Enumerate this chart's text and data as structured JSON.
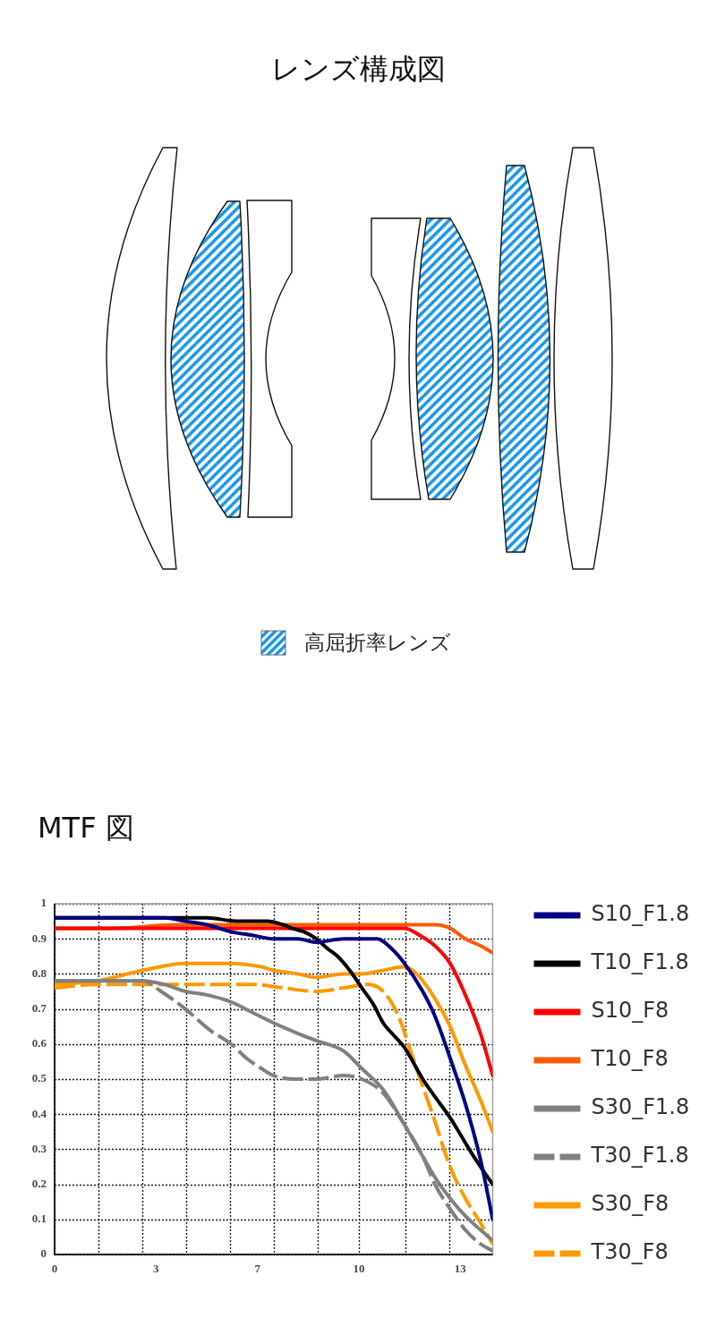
{
  "chart_data": [
    {
      "type": "other",
      "title": "レンズ構成図",
      "annotations": [
        "高屈折率レンズ"
      ]
    },
    {
      "type": "line",
      "title": "MTF 図",
      "xlim": [
        0,
        14.4
      ],
      "xticks": [
        0,
        {
          "value": 1.44,
          "label": null
        },
        {
          "value": 2.88,
          "label": null
        },
        {
          "value": 3.33,
          "label": "3"
        },
        {
          "value": 4.32,
          "label": null
        },
        {
          "value": 5.76,
          "label": null
        },
        {
          "value": 6.67,
          "label": "7"
        },
        {
          "value": 7.2,
          "label": null
        },
        {
          "value": 8.64,
          "label": null
        },
        10,
        {
          "value": 11.52,
          "label": null
        },
        {
          "value": 12.96,
          "label": null
        },
        {
          "value": 13.33,
          "label": "13"
        }
      ],
      "ylim": [
        0,
        1
      ],
      "yticks": [
        0,
        0.1,
        0.2,
        0.3,
        0.4,
        0.5,
        0.6,
        0.7,
        0.8,
        0.9,
        1
      ],
      "grid": true,
      "legend": "right",
      "series": [
        {
          "name": "S10_F1.8",
          "color": "#000080",
          "x": [
            0,
            1,
            2,
            3,
            3.6,
            4.3,
            5,
            5.8,
            6.5,
            7.2,
            8,
            8.6,
            9.5,
            10.1,
            10.6,
            11.1,
            11.5,
            12.1,
            12.5,
            13,
            13.5,
            14,
            14.4
          ],
          "values": [
            0.96,
            0.96,
            0.96,
            0.96,
            0.96,
            0.95,
            0.94,
            0.92,
            0.91,
            0.9,
            0.9,
            0.89,
            0.9,
            0.9,
            0.9,
            0.87,
            0.83,
            0.75,
            0.68,
            0.56,
            0.43,
            0.27,
            0.1
          ]
        },
        {
          "name": "T10_F1.8",
          "color": "#000000",
          "x": [
            0,
            1,
            2,
            3,
            4,
            5,
            6,
            6.5,
            7,
            7.5,
            7.8,
            8.2,
            8.6,
            9,
            9.3,
            9.7,
            10.1,
            10.5,
            10.8,
            11.2,
            11.5,
            12.1,
            12.5,
            13,
            13.7,
            14,
            14.4
          ],
          "values": [
            0.96,
            0.96,
            0.96,
            0.96,
            0.96,
            0.96,
            0.95,
            0.95,
            0.95,
            0.94,
            0.93,
            0.92,
            0.9,
            0.87,
            0.85,
            0.81,
            0.76,
            0.71,
            0.66,
            0.62,
            0.59,
            0.5,
            0.45,
            0.39,
            0.29,
            0.25,
            0.2
          ]
        },
        {
          "name": "S10_F8",
          "color": "#ff0000",
          "x": [
            0,
            2,
            4,
            6,
            8,
            10,
            11,
            11.5,
            12,
            12.5,
            13,
            13.5,
            14,
            14.4
          ],
          "values": [
            0.93,
            0.93,
            0.93,
            0.93,
            0.93,
            0.93,
            0.93,
            0.93,
            0.91,
            0.88,
            0.83,
            0.74,
            0.63,
            0.51
          ]
        },
        {
          "name": "T10_F8",
          "color": "#ff5a00",
          "x": [
            0,
            2,
            4,
            6,
            8,
            10,
            11.5,
            12.5,
            13,
            13.5,
            14,
            14.4
          ],
          "values": [
            0.93,
            0.93,
            0.94,
            0.94,
            0.94,
            0.94,
            0.94,
            0.94,
            0.93,
            0.9,
            0.88,
            0.86
          ]
        },
        {
          "name": "S30_F1.8",
          "color": "#808080",
          "x": [
            0,
            1.4,
            2.9,
            3.6,
            4.3,
            5,
            5.8,
            6.5,
            7.2,
            8,
            8.6,
            9.5,
            10.1,
            10.8,
            11.5,
            12.1,
            12.5,
            13,
            13.5,
            14,
            14.4
          ],
          "values": [
            0.78,
            0.78,
            0.78,
            0.77,
            0.75,
            0.74,
            0.72,
            0.69,
            0.66,
            0.63,
            0.61,
            0.58,
            0.53,
            0.47,
            0.37,
            0.28,
            0.22,
            0.16,
            0.11,
            0.07,
            0.04
          ]
        },
        {
          "name": "T30_F1.8",
          "color": "#808080",
          "line_style": "dashed",
          "x": [
            0,
            1.4,
            2.9,
            3.5,
            4.3,
            5.1,
            5.8,
            6.3,
            6.8,
            7.2,
            8,
            8.6,
            9.5,
            10.1,
            10.8,
            11.5,
            12.1,
            12.5,
            13,
            13.5,
            14,
            14.4
          ],
          "values": [
            0.78,
            0.78,
            0.78,
            0.75,
            0.7,
            0.64,
            0.6,
            0.56,
            0.53,
            0.51,
            0.5,
            0.5,
            0.51,
            0.5,
            0.46,
            0.37,
            0.28,
            0.2,
            0.13,
            0.07,
            0.03,
            0.01
          ]
        },
        {
          "name": "S30_F8",
          "color": "#ff9900",
          "x": [
            0,
            1.4,
            2.9,
            4.3,
            5,
            5.8,
            6.8,
            7.2,
            8,
            8.6,
            9.5,
            10.1,
            10.8,
            11.5,
            11.9,
            12.5,
            13,
            13.5,
            14,
            14.4
          ],
          "values": [
            0.77,
            0.78,
            0.81,
            0.83,
            0.83,
            0.83,
            0.82,
            0.81,
            0.8,
            0.79,
            0.8,
            0.8,
            0.81,
            0.82,
            0.8,
            0.73,
            0.65,
            0.54,
            0.44,
            0.35
          ]
        },
        {
          "name": "T30_F8",
          "color": "#ff9900",
          "line_style": "dashed",
          "x": [
            0,
            1.4,
            2.9,
            4.3,
            5.8,
            6.5,
            7.5,
            8.6,
            9.5,
            10.3,
            10.8,
            11.3,
            11.7,
            12.1,
            12.5,
            13,
            13.5,
            14,
            14.4
          ],
          "values": [
            0.76,
            0.77,
            0.77,
            0.77,
            0.77,
            0.77,
            0.76,
            0.75,
            0.76,
            0.77,
            0.75,
            0.68,
            0.58,
            0.48,
            0.38,
            0.25,
            0.16,
            0.09,
            0.03
          ]
        }
      ]
    }
  ]
}
